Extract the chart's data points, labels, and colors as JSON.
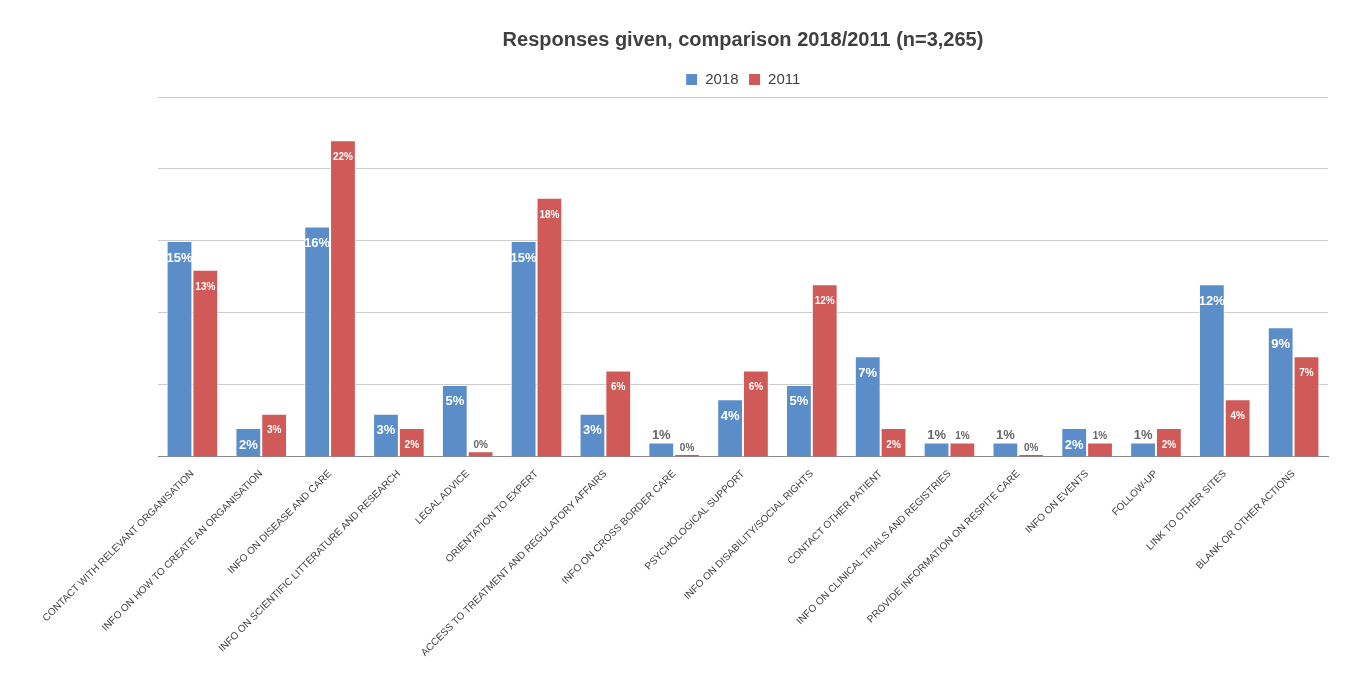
{
  "chart_data": {
    "type": "bar",
    "title": "Responses given, comparison 2018/2011 (n=3,265)",
    "categories": [
      "CONTACT WITH RELEVANT ORGANISATION",
      "INFO ON HOW TO CREATE AN ORGANISATION",
      "INFO ON DISEASE AND CARE",
      "INFO ON SCIENTIFIC LITTERATURE AND RESEARCH",
      "LEGAL ADVICE",
      "ORIENTATION TO EXPERT",
      "ACCESS TO TREATMENT AND REGULATORY AFFAIRS",
      "INFO ON CROSS BORDER CARE",
      "PSYCHOLOGICAL SUPPORT",
      "INFO ON DISABILITY/SOCIAL RIGHTS",
      "CONTACT OTHER PATIENT",
      "INFO ON CLINICAL TRIALS AND REGISTRIES",
      "PROVIDE INFORMATION ON RESPITE CARE",
      "INFO ON EVENTS",
      "FOLLOW-UP",
      "LINK TO OTHER SITES",
      "BLANK OR OTHER ACTIONS"
    ],
    "series": [
      {
        "name": "2018",
        "color": "#5b8ec9",
        "values": [
          15,
          2,
          16,
          3,
          5,
          15,
          3,
          1,
          4,
          5,
          7,
          1,
          1,
          2,
          1,
          12,
          9
        ],
        "value_labels": [
          "15%",
          "2%",
          "16%",
          "3%",
          "5%",
          "15%",
          "3%",
          "1%",
          "4%",
          "5%",
          "7%",
          "1%",
          "1%",
          "2%",
          "1%",
          "12%",
          "9%"
        ]
      },
      {
        "name": "2011",
        "color": "#d05a57",
        "values": [
          13,
          3,
          22,
          2,
          0.4,
          18,
          6,
          0.2,
          6,
          12,
          2,
          1,
          0.2,
          1,
          2,
          4,
          7
        ],
        "value_labels": [
          "13%",
          "3%",
          "22%",
          "2%",
          "0%",
          "18%",
          "6%",
          "0%",
          "6%",
          "12%",
          "2%",
          "1%",
          "0%",
          "1%",
          "2%",
          "4%",
          "7%"
        ]
      }
    ],
    "grid": "y",
    "legend": "top"
  }
}
